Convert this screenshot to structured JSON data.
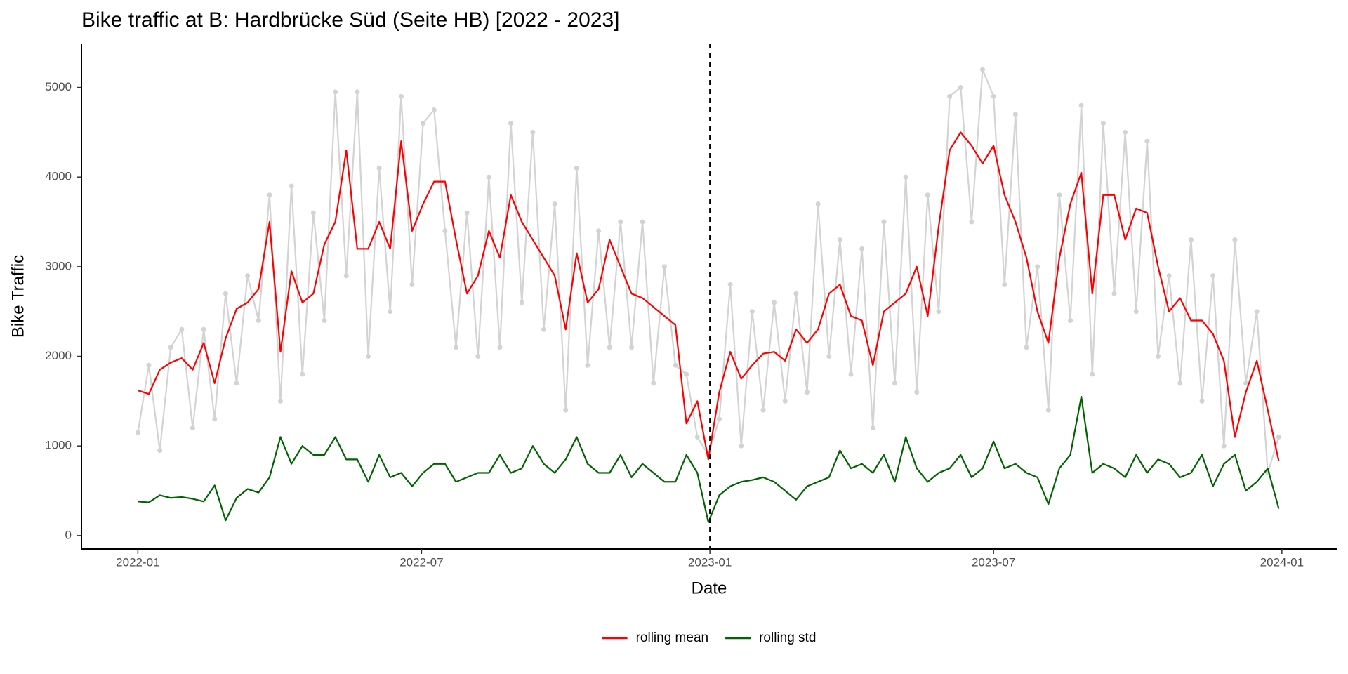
{
  "chart_data": {
    "type": "line",
    "title": "Bike traffic at B: Hardbrücke Süd (Seite HB)  [2022 - 2023]",
    "x_label": "Date",
    "y_label": "Bike Traffic",
    "x": [
      "2022-01-01",
      "2022-01-08",
      "2022-01-15",
      "2022-01-22",
      "2022-01-29",
      "2022-02-05",
      "2022-02-12",
      "2022-02-19",
      "2022-02-26",
      "2022-03-05",
      "2022-03-12",
      "2022-03-19",
      "2022-03-26",
      "2022-04-02",
      "2022-04-09",
      "2022-04-16",
      "2022-04-23",
      "2022-04-30",
      "2022-05-07",
      "2022-05-14",
      "2022-05-21",
      "2022-05-28",
      "2022-06-04",
      "2022-06-11",
      "2022-06-18",
      "2022-06-25",
      "2022-07-02",
      "2022-07-09",
      "2022-07-16",
      "2022-07-23",
      "2022-07-30",
      "2022-08-06",
      "2022-08-13",
      "2022-08-20",
      "2022-08-27",
      "2022-09-03",
      "2022-09-10",
      "2022-09-17",
      "2022-09-24",
      "2022-10-01",
      "2022-10-08",
      "2022-10-15",
      "2022-10-22",
      "2022-10-29",
      "2022-11-05",
      "2022-11-12",
      "2022-11-19",
      "2022-11-26",
      "2022-12-03",
      "2022-12-10",
      "2022-12-17",
      "2022-12-24",
      "2022-12-31",
      "2023-01-07",
      "2023-01-14",
      "2023-01-21",
      "2023-01-28",
      "2023-02-04",
      "2023-02-11",
      "2023-02-18",
      "2023-02-25",
      "2023-03-04",
      "2023-03-11",
      "2023-03-18",
      "2023-03-25",
      "2023-04-01",
      "2023-04-08",
      "2023-04-15",
      "2023-04-22",
      "2023-04-29",
      "2023-05-06",
      "2023-05-13",
      "2023-05-20",
      "2023-05-27",
      "2023-06-03",
      "2023-06-10",
      "2023-06-17",
      "2023-06-24",
      "2023-07-01",
      "2023-07-08",
      "2023-07-15",
      "2023-07-22",
      "2023-07-29",
      "2023-08-05",
      "2023-08-12",
      "2023-08-19",
      "2023-08-26",
      "2023-09-02",
      "2023-09-09",
      "2023-09-16",
      "2023-09-23",
      "2023-09-30",
      "2023-10-07",
      "2023-10-14",
      "2023-10-21",
      "2023-10-28",
      "2023-11-04",
      "2023-11-11",
      "2023-11-18",
      "2023-11-25",
      "2023-12-02",
      "2023-12-09",
      "2023-12-16",
      "2023-12-23",
      "2023-12-30"
    ],
    "series": [
      {
        "color": "#d3d3d3",
        "markers": true,
        "values": [
          1150,
          1900,
          950,
          2100,
          2300,
          1200,
          2300,
          1300,
          2700,
          1700,
          2900,
          2400,
          3800,
          1500,
          3900,
          1800,
          3600,
          2400,
          4950,
          2900,
          4950,
          2000,
          4100,
          2500,
          4900,
          2800,
          4600,
          4750,
          3400,
          2100,
          3600,
          2000,
          4000,
          2100,
          4600,
          2600,
          4500,
          2300,
          3700,
          1400,
          4100,
          1900,
          3400,
          2100,
          3500,
          2100,
          3500,
          1700,
          3000,
          1900,
          1800,
          1100,
          900,
          1300,
          2800,
          1000,
          2500,
          1400,
          2600,
          1500,
          2700,
          1600,
          3700,
          2000,
          3300,
          1800,
          3200,
          1200,
          3500,
          1700,
          4000,
          1600,
          3800,
          2500,
          4900,
          5000,
          3500,
          5200,
          4900,
          2800,
          4700,
          2100,
          3000,
          1400,
          3800,
          2400,
          4800,
          1800,
          4600,
          2700,
          4500,
          2500,
          4400,
          2000,
          2900,
          1700,
          3300,
          1500,
          2900,
          1000,
          3300,
          1700,
          2500,
          700,
          1100
        ]
      },
      {
        "name": "rolling mean",
        "color": "#ff0000",
        "values": [
          1620,
          1580,
          1850,
          1930,
          1980,
          1850,
          2150,
          1700,
          2200,
          2530,
          2600,
          2750,
          3500,
          2050,
          2950,
          2600,
          2700,
          3250,
          3500,
          4300,
          3200,
          3200,
          3500,
          3200,
          4400,
          3400,
          3700,
          3950,
          3950,
          3300,
          2700,
          2900,
          3400,
          3100,
          3800,
          3500,
          3300,
          3100,
          2900,
          2300,
          3150,
          2600,
          2750,
          3300,
          3000,
          2700,
          2650,
          2550,
          2450,
          2350,
          1250,
          1500,
          850,
          1600,
          2050,
          1750,
          1900,
          2030,
          2050,
          1950,
          2300,
          2150,
          2300,
          2700,
          2800,
          2450,
          2400,
          1900,
          2500,
          2600,
          2700,
          3000,
          2450,
          3450,
          4300,
          4500,
          4350,
          4150,
          4350,
          3800,
          3500,
          3100,
          2500,
          2150,
          3100,
          3700,
          4050,
          2700,
          3800,
          3800,
          3300,
          3650,
          3600,
          3000,
          2500,
          2650,
          2400,
          2400,
          2250,
          1950,
          1100,
          1600,
          1950,
          1400,
          830
        ]
      },
      {
        "name": "rolling std",
        "color": "#006400",
        "values": [
          380,
          370,
          450,
          420,
          430,
          410,
          380,
          560,
          170,
          420,
          520,
          480,
          650,
          1100,
          800,
          1000,
          900,
          900,
          1100,
          850,
          850,
          600,
          900,
          650,
          700,
          550,
          700,
          800,
          800,
          600,
          650,
          700,
          700,
          900,
          700,
          750,
          1000,
          800,
          700,
          850,
          1100,
          800,
          700,
          700,
          900,
          650,
          800,
          700,
          600,
          600,
          900,
          700,
          150,
          450,
          550,
          600,
          620,
          650,
          600,
          500,
          400,
          550,
          600,
          650,
          950,
          750,
          800,
          700,
          900,
          600,
          1100,
          750,
          600,
          700,
          750,
          900,
          650,
          750,
          1050,
          750,
          800,
          700,
          650,
          350,
          750,
          900,
          1550,
          700,
          800,
          750,
          650,
          900,
          700,
          850,
          800,
          650,
          700,
          900,
          550,
          800,
          900,
          500,
          600,
          750,
          300
        ]
      }
    ],
    "xlim": [
      "2021-11-26",
      "2024-02-05"
    ],
    "xticks": [
      {
        "value": "2022-01-01",
        "label": "2022-01"
      },
      {
        "value": "2022-07-01",
        "label": "2022-07"
      },
      {
        "value": "2023-01-01",
        "label": "2023-01"
      },
      {
        "value": "2023-07-01",
        "label": "2023-07"
      },
      {
        "value": "2024-01-01",
        "label": "2024-01"
      }
    ],
    "ylim": [
      -150,
      5490
    ],
    "yticks": [
      0,
      1000,
      2000,
      3000,
      4000,
      5000
    ],
    "vline": "2023-01-01",
    "grid": false,
    "legend": "bottom"
  }
}
